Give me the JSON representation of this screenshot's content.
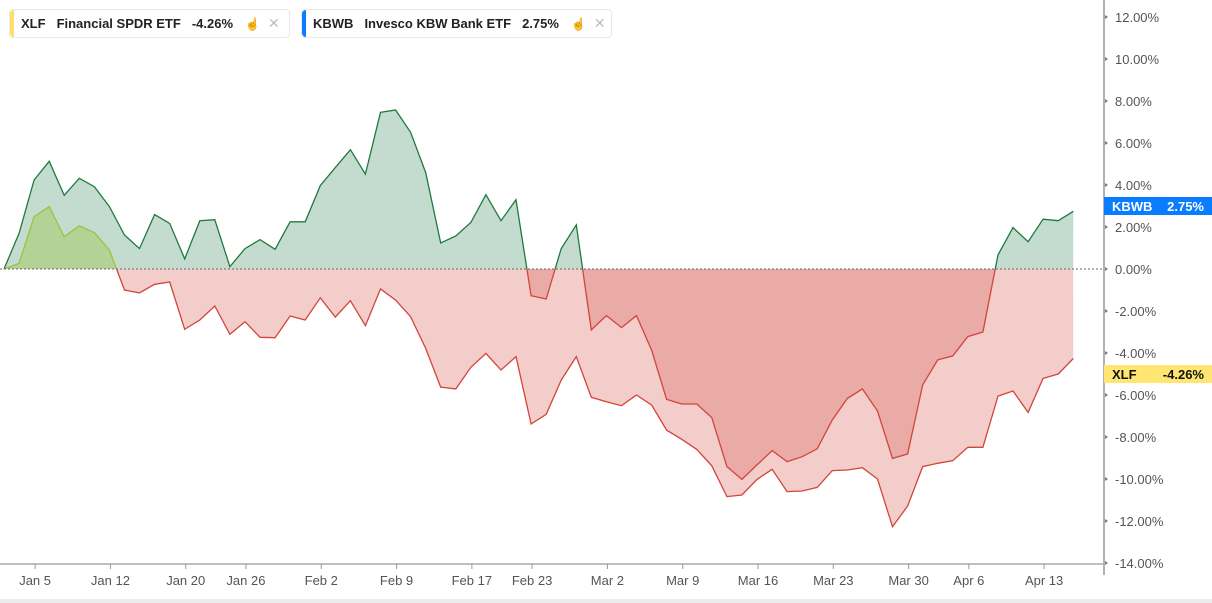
{
  "legend": [
    {
      "symbol": "XLF",
      "name": "Financial SPDR ETF",
      "change": "-4.26%",
      "color": "#ffe066",
      "settings_icon": "hand-icon",
      "close_icon": "close-icon",
      "close_label": "✕",
      "settings_label": "☝"
    },
    {
      "symbol": "KBWB",
      "name": "Invesco KBW Bank ETF",
      "change": "2.75%",
      "color": "#0a7cff",
      "settings_icon": "hand-icon",
      "close_icon": "close-icon",
      "close_label": "✕",
      "settings_label": "☝"
    }
  ],
  "colors": {
    "positive_line": "#1e7a3c",
    "positive_fill": "#c4dccf",
    "xlf_positive_line": "#9cc23a",
    "negative_line": "#d2453b",
    "negative_fill": "#f1cdcc",
    "kbwb_flag": "#0a7cff",
    "xlf_flag": "#ffe672"
  },
  "chart_data": {
    "type": "area",
    "ylim": [
      -14,
      12
    ],
    "y_ticks": [
      "12.00%",
      "10.00%",
      "8.00%",
      "6.00%",
      "4.00%",
      "2.00%",
      "0.00%",
      "-2.00%",
      "-4.00%",
      "-6.00%",
      "-8.00%",
      "-10.00%",
      "-12.00%",
      "-14.00%"
    ],
    "y_tick_values": [
      12,
      10,
      8,
      6,
      4,
      2,
      0,
      -2,
      -4,
      -6,
      -8,
      -10,
      -12,
      -14
    ],
    "x_ticks": [
      {
        "label": "Jan 5",
        "index": 2
      },
      {
        "label": "Jan 12",
        "index": 7
      },
      {
        "label": "Jan 20",
        "index": 12
      },
      {
        "label": "Jan 26",
        "index": 16
      },
      {
        "label": "Feb 2",
        "index": 21
      },
      {
        "label": "Feb 9",
        "index": 26
      },
      {
        "label": "Feb 17",
        "index": 31
      },
      {
        "label": "Feb 23",
        "index": 35
      },
      {
        "label": "Mar 2",
        "index": 40
      },
      {
        "label": "Mar 9",
        "index": 45
      },
      {
        "label": "Mar 16",
        "index": 50
      },
      {
        "label": "Mar 23",
        "index": 55
      },
      {
        "label": "Mar 30",
        "index": 60
      },
      {
        "label": "Apr 6",
        "index": 64
      },
      {
        "label": "Apr 13",
        "index": 69
      }
    ],
    "zero_line": "dotted",
    "series": [
      {
        "name": "XLF",
        "last_label": "-4.26%",
        "values": [
          0,
          0.27,
          2.49,
          2.97,
          1.54,
          2.05,
          1.73,
          0.9,
          -1.0,
          -1.14,
          -0.73,
          -0.62,
          -2.87,
          -2.43,
          -1.76,
          -3.11,
          -2.51,
          -3.25,
          -3.27,
          -2.24,
          -2.43,
          -1.37,
          -2.29,
          -1.51,
          -2.7,
          -0.95,
          -1.48,
          -2.27,
          -3.78,
          -5.63,
          -5.71,
          -4.68,
          -4.02,
          -4.81,
          -4.17,
          -7.38,
          -6.92,
          -5.29,
          -4.17,
          -6.11,
          -6.32,
          -6.51,
          -6.0,
          -6.48,
          -7.67,
          -8.11,
          -8.59,
          -9.37,
          -10.84,
          -10.76,
          -10.02,
          -9.54,
          -10.6,
          -10.57,
          -10.4,
          -9.6,
          -9.57,
          -9.46,
          -10.0,
          -12.27,
          -11.29,
          -9.41,
          -9.25,
          -9.13,
          -8.49,
          -8.49,
          -6.05,
          -5.81,
          -6.83,
          -5.21,
          -5.0,
          -4.26
        ]
      },
      {
        "name": "KBWB",
        "last_label": "2.75%",
        "values": [
          0,
          1.7,
          4.24,
          5.13,
          3.51,
          4.32,
          3.92,
          2.97,
          1.62,
          0.97,
          2.59,
          2.17,
          0.48,
          2.3,
          2.35,
          0.11,
          0.97,
          1.4,
          0.94,
          2.25,
          2.25,
          3.97,
          4.83,
          5.68,
          4.52,
          7.46,
          7.57,
          6.51,
          4.59,
          1.24,
          1.57,
          2.22,
          3.54,
          2.3,
          3.3,
          -1.27,
          -1.43,
          0.97,
          2.1,
          -2.9,
          -2.22,
          -2.79,
          -2.22,
          -3.86,
          -6.21,
          -6.43,
          -6.43,
          -7.08,
          -9.41,
          -10.02,
          -9.33,
          -8.65,
          -9.17,
          -8.94,
          -8.56,
          -7.19,
          -6.16,
          -5.71,
          -6.76,
          -9.02,
          -8.81,
          -5.52,
          -4.33,
          -4.14,
          -3.22,
          -3.0,
          0.67,
          1.97,
          1.3,
          2.37,
          2.3,
          2.75
        ]
      }
    ]
  }
}
